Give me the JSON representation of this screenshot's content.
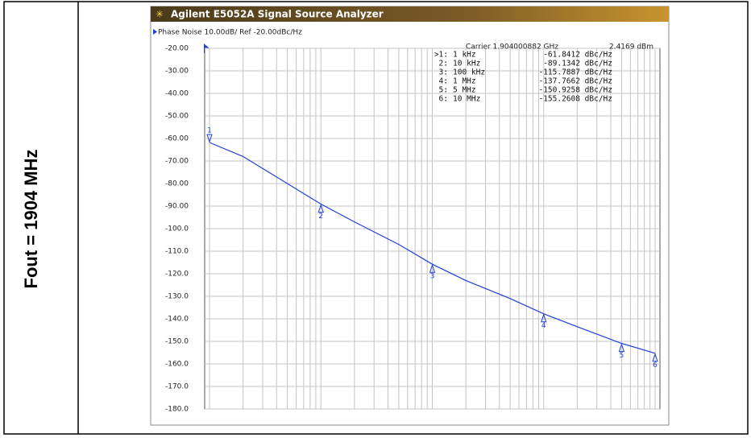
{
  "side_label": "Fout = 1904 MHz",
  "window_title": "Agilent E5052A Signal Source Analyzer",
  "chart_data": {
    "type": "line",
    "title": "Phase Noise 10.00dB/ Ref -20.00dBc/Hz",
    "annotations": [
      "Carrier 1.904000882 GHz",
      "2.4169 dBm"
    ],
    "x": [
      1000,
      2000,
      5000,
      10000,
      20000,
      50000,
      100000,
      200000,
      500000,
      1000000,
      2000000,
      5000000,
      10000000
    ],
    "series": [
      {
        "name": "Phase Noise",
        "color": "#1f3fd6",
        "values": [
          -61.8,
          -68,
          -80,
          -89.1,
          -97,
          -107,
          -115.8,
          -123,
          -131,
          -137.8,
          -143.5,
          -150.9,
          -155.3
        ]
      }
    ],
    "x_log": true,
    "xlim": [
      1000,
      10000000
    ],
    "xticks": [
      1000,
      2000,
      3000,
      4000,
      5000,
      6000,
      7000,
      8000,
      9000,
      10000,
      20000,
      30000,
      40000,
      50000,
      60000,
      70000,
      80000,
      90000,
      100000,
      200000,
      300000,
      400000,
      500000,
      600000,
      700000,
      800000,
      900000,
      1000000,
      2000000,
      3000000,
      4000000,
      5000000,
      6000000,
      7000000,
      8000000,
      9000000,
      10000000
    ],
    "ylim": [
      -180,
      -20
    ],
    "yticks": [
      {
        "value": -20,
        "label": "-20.00"
      },
      {
        "value": -30,
        "label": "-30.00"
      },
      {
        "value": -40,
        "label": "-40.00"
      },
      {
        "value": -50,
        "label": "-50.00"
      },
      {
        "value": -60,
        "label": "-60.00"
      },
      {
        "value": -70,
        "label": "-70.00"
      },
      {
        "value": -80,
        "label": "-80.00"
      },
      {
        "value": -90,
        "label": "-90.00"
      },
      {
        "value": -100,
        "label": "-100.0"
      },
      {
        "value": -110,
        "label": "-110.0"
      },
      {
        "value": -120,
        "label": "-120.0"
      },
      {
        "value": -130,
        "label": "-130.0"
      },
      {
        "value": -140,
        "label": "-140.0"
      },
      {
        "value": -150,
        "label": "-150.0"
      },
      {
        "value": -160,
        "label": "-160.0"
      },
      {
        "value": -170,
        "label": "-170.0"
      },
      {
        "value": -180,
        "label": "-180.0"
      }
    ],
    "grid": true,
    "markers": [
      {
        "id": "1",
        "label": ">1:",
        "x": 1000,
        "x_label": "1 kHz",
        "value": -61.8412,
        "value_label": "-61.8412 dBc/Hz"
      },
      {
        "id": "2",
        "label": "2:",
        "x": 10000,
        "x_label": "10 kHz",
        "value": -89.1342,
        "value_label": "-89.1342 dBc/Hz"
      },
      {
        "id": "3",
        "label": "3:",
        "x": 100000,
        "x_label": "100 kHz",
        "value": -115.7887,
        "value_label": "-115.7887 dBc/Hz"
      },
      {
        "id": "4",
        "label": "4:",
        "x": 1000000,
        "x_label": "1 MHz",
        "value": -137.7662,
        "value_label": "-137.7662 dBc/Hz"
      },
      {
        "id": "5",
        "label": "5:",
        "x": 5000000,
        "x_label": "5 MHz",
        "value": -150.9258,
        "value_label": "-150.9258 dBc/Hz"
      },
      {
        "id": "6",
        "label": "6:",
        "x": 10000000,
        "x_label": "10 MHz",
        "value": -155.2608,
        "value_label": "-155.2608 dBc/Hz"
      }
    ]
  }
}
